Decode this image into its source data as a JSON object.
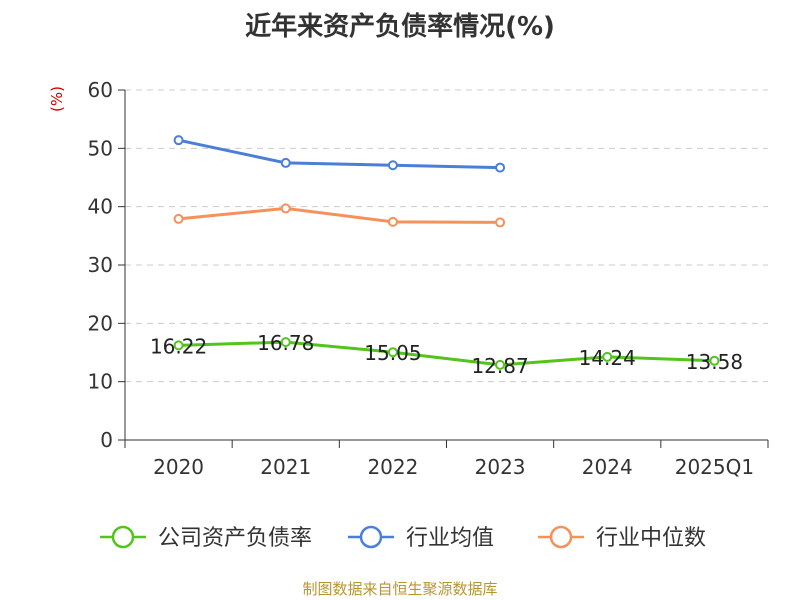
{
  "chart_data": {
    "type": "line",
    "title": "近年来资产负债率情况(%)",
    "unit_label": "(%)",
    "categories": [
      "2020",
      "2021",
      "2022",
      "2023",
      "2024",
      "2025Q1"
    ],
    "ylim": [
      0,
      60
    ],
    "yticks": [
      "0",
      "10",
      "20",
      "30",
      "40",
      "50",
      "60"
    ],
    "grid": true,
    "legend_position": "bottom",
    "series": [
      {
        "name": "公司资产负债率",
        "color": "#52c41a",
        "values": [
          16.22,
          16.78,
          15.05,
          12.87,
          14.24,
          13.58
        ],
        "labels": [
          "16.22",
          "16.78",
          "15.05",
          "12.87",
          "14.24",
          "13.58"
        ]
      },
      {
        "name": "行业均值",
        "color": "#4a7fd8",
        "values": [
          51.4,
          47.5,
          47.1,
          46.7,
          null,
          null
        ]
      },
      {
        "name": "行业中位数",
        "color": "#f5915a",
        "values": [
          37.9,
          39.7,
          37.4,
          37.3,
          null,
          null
        ]
      }
    ]
  },
  "footer": {
    "source": "制图数据来自恒生聚源数据库"
  }
}
